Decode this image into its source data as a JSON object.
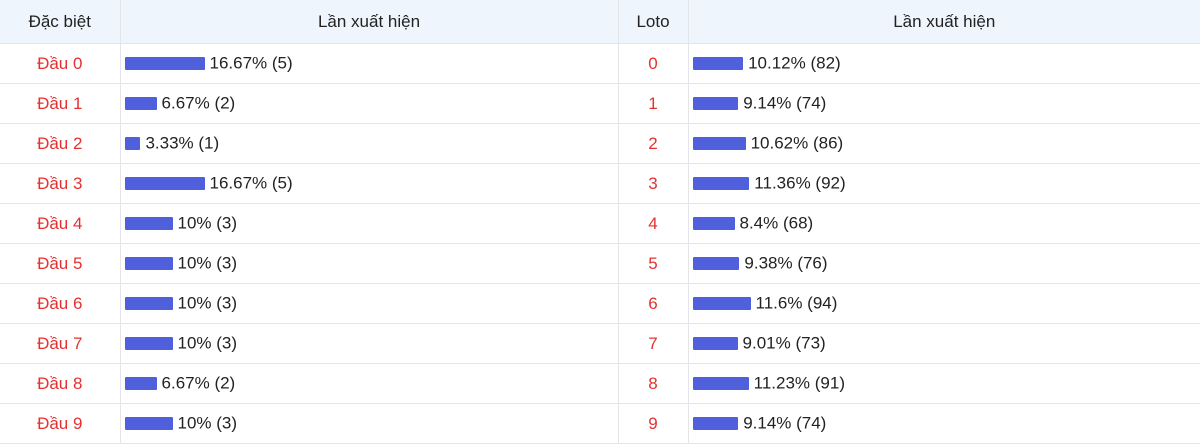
{
  "headers": [
    "Đặc biệt",
    "Lần xuất hiện",
    "Loto",
    "Lần xuất hiện"
  ],
  "special": [
    {
      "label": "Đầu 0",
      "percent": 16.67,
      "text": "16.67% (5)"
    },
    {
      "label": "Đầu 1",
      "percent": 6.67,
      "text": "6.67% (2)"
    },
    {
      "label": "Đầu 2",
      "percent": 3.33,
      "text": "3.33% (1)"
    },
    {
      "label": "Đầu 3",
      "percent": 16.67,
      "text": "16.67% (5)"
    },
    {
      "label": "Đầu 4",
      "percent": 10,
      "text": "10% (3)"
    },
    {
      "label": "Đầu 5",
      "percent": 10,
      "text": "10% (3)"
    },
    {
      "label": "Đầu 6",
      "percent": 10,
      "text": "10% (3)"
    },
    {
      "label": "Đầu 7",
      "percent": 10,
      "text": "10% (3)"
    },
    {
      "label": "Đầu 8",
      "percent": 6.67,
      "text": "6.67% (2)"
    },
    {
      "label": "Đầu 9",
      "percent": 10,
      "text": "10% (3)"
    }
  ],
  "loto": [
    {
      "label": "0",
      "percent": 10.12,
      "text": "10.12% (82)"
    },
    {
      "label": "1",
      "percent": 9.14,
      "text": "9.14% (74)"
    },
    {
      "label": "2",
      "percent": 10.62,
      "text": "10.62% (86)"
    },
    {
      "label": "3",
      "percent": 11.36,
      "text": "11.36% (92)"
    },
    {
      "label": "4",
      "percent": 8.4,
      "text": "8.4% (68)"
    },
    {
      "label": "5",
      "percent": 9.38,
      "text": "9.38% (76)"
    },
    {
      "label": "6",
      "percent": 11.6,
      "text": "11.6% (94)"
    },
    {
      "label": "7",
      "percent": 9.01,
      "text": "9.01% (73)"
    },
    {
      "label": "8",
      "percent": 11.23,
      "text": "11.23% (91)"
    },
    {
      "label": "9",
      "percent": 9.14,
      "text": "9.14% (74)"
    }
  ]
}
